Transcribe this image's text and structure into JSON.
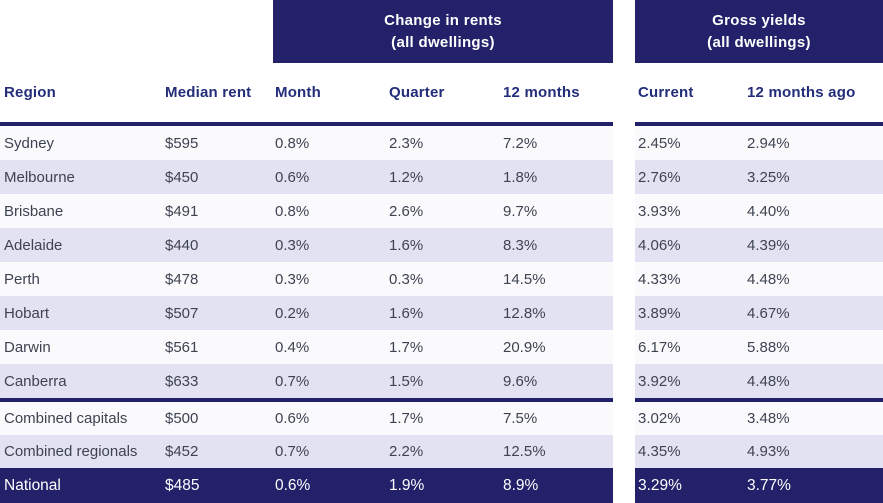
{
  "colors": {
    "navy": "#222169",
    "header_text": "#232D7A",
    "body_text": "#3E4351",
    "stripe": "#E2E2F3",
    "row_light": "#FAFAFD",
    "national_text": "#FFFFFF",
    "gap": "#FFFFFF"
  },
  "group_headers": {
    "change_in_rents": {
      "line1": "Change in rents",
      "line2": "(all dwellings)"
    },
    "gross_yields": {
      "line1": "Gross yields",
      "line2": "(all dwellings)"
    }
  },
  "chart_data": {
    "type": "table",
    "title": "Change in rents and gross yields (all dwellings)",
    "column_groups": [
      {
        "label": "Change in rents (all dwellings)",
        "columns": [
          "Month",
          "Quarter",
          "12 months"
        ]
      },
      {
        "label": "Gross yields (all dwellings)",
        "columns": [
          "Current",
          "12 months ago"
        ]
      }
    ],
    "columns": [
      "Region",
      "Median rent",
      "Month",
      "Quarter",
      "12 months",
      "Current",
      "12 months ago"
    ],
    "rows": [
      [
        "Sydney",
        "$595",
        "0.8%",
        "2.3%",
        "7.2%",
        "2.45%",
        "2.94%"
      ],
      [
        "Melbourne",
        "$450",
        "0.6%",
        "1.2%",
        "1.8%",
        "2.76%",
        "3.25%"
      ],
      [
        "Brisbane",
        "$491",
        "0.8%",
        "2.6%",
        "9.7%",
        "3.93%",
        "4.40%"
      ],
      [
        "Adelaide",
        "$440",
        "0.3%",
        "1.6%",
        "8.3%",
        "4.06%",
        "4.39%"
      ],
      [
        "Perth",
        "$478",
        "0.3%",
        "0.3%",
        "14.5%",
        "4.33%",
        "4.48%"
      ],
      [
        "Hobart",
        "$507",
        "0.2%",
        "1.6%",
        "12.8%",
        "3.89%",
        "4.67%"
      ],
      [
        "Darwin",
        "$561",
        "0.4%",
        "1.7%",
        "20.9%",
        "6.17%",
        "5.88%"
      ],
      [
        "Canberra",
        "$633",
        "0.7%",
        "1.5%",
        "9.6%",
        "3.92%",
        "4.48%"
      ],
      [
        "Combined capitals",
        "$500",
        "0.6%",
        "1.7%",
        "7.5%",
        "3.02%",
        "3.48%"
      ],
      [
        "Combined regionals",
        "$452",
        "0.7%",
        "2.2%",
        "12.5%",
        "4.35%",
        "4.93%"
      ],
      [
        "National",
        "$485",
        "0.6%",
        "1.9%",
        "8.9%",
        "3.29%",
        "3.77%"
      ]
    ],
    "layout_hints": {
      "separator_after_row_index": 7,
      "total_row": "National",
      "striped": true,
      "column_group_gap_after_column": "12 months"
    }
  }
}
